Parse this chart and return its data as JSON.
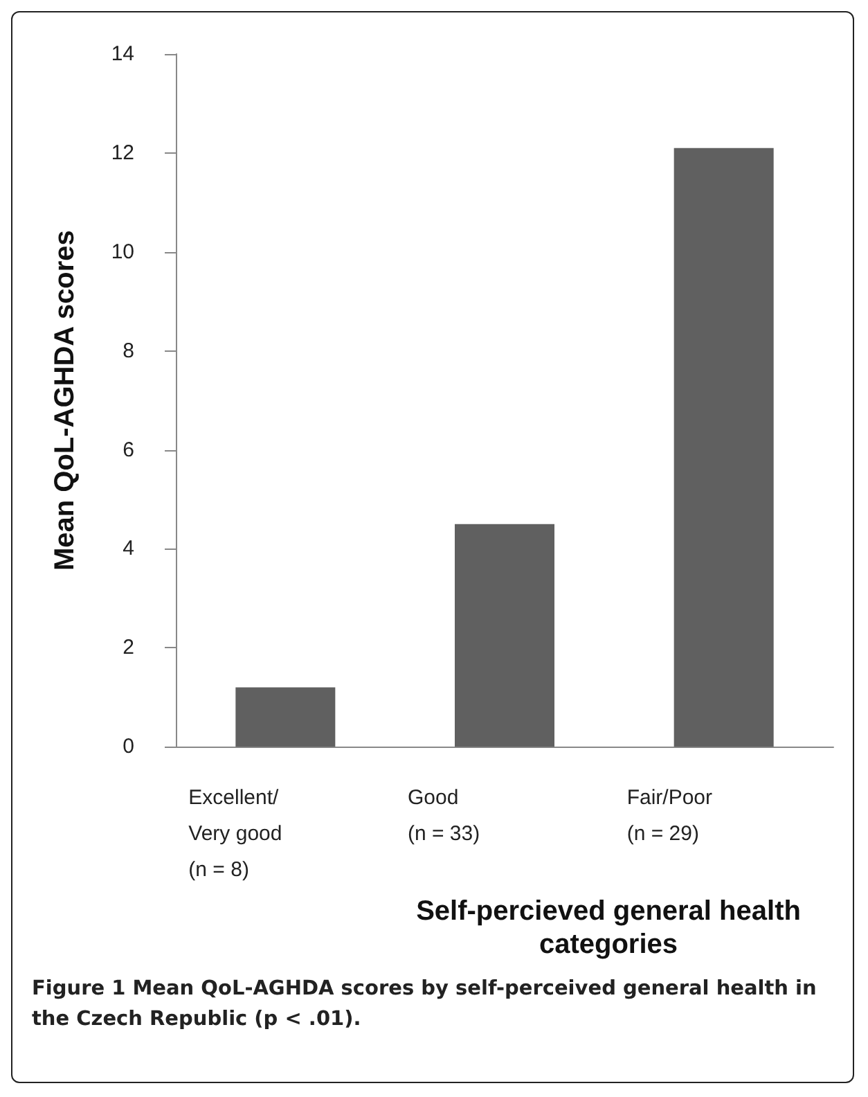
{
  "chart_data": {
    "type": "bar",
    "ylabel": "Mean QoL-AGHDA scores",
    "xlabel": "Self-percieved general health\ncategories",
    "categories": [
      "Excellent/\nVery good\n(n = 8)",
      "Good\n(n = 33)",
      "Fair/Poor\n(n = 29)"
    ],
    "values": [
      1.2,
      4.5,
      12.1
    ],
    "color": "#606060",
    "ylim": [
      0,
      14
    ],
    "yticks": [
      0,
      2,
      4,
      6,
      8,
      10,
      12,
      14
    ],
    "grid": false,
    "annotations": [
      "Figure 1 Mean QoL-AGHDA scores by self-perceived general health in the Czech Republic (p < .01)."
    ]
  }
}
